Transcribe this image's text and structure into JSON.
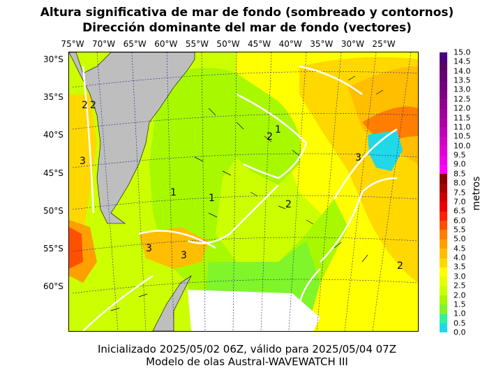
{
  "title_line1": "Altura significativa de mar de fondo (sombreado y contornos)",
  "title_line2": "Dirección dominante del mar de fondo (vectores)",
  "longitude_labels": [
    "75°W",
    "70°W",
    "65°W",
    "60°W",
    "55°W",
    "50°W",
    "45°W",
    "40°W",
    "35°W",
    "30°W",
    "25°W"
  ],
  "latitude_labels": [
    "30°S",
    "35°S",
    "40°S",
    "45°S",
    "50°S",
    "55°S",
    "60°S"
  ],
  "colorbar": {
    "label": "metros",
    "ticks": [
      "15.0",
      "14.5",
      "14.0",
      "13.5",
      "13.0",
      "12.5",
      "12.0",
      "11.5",
      "11.0",
      "10.5",
      "10.0",
      "9.5",
      "9.0",
      "8.5",
      "8.0",
      "7.5",
      "7.0",
      "6.5",
      "6.0",
      "5.5",
      "5.0",
      "4.5",
      "4.0",
      "3.5",
      "3.0",
      "2.5",
      "2.0",
      "1.5",
      "1.0",
      "0.5",
      "0.0"
    ],
    "colors": [
      "#20d8e8",
      "#2ef2a0",
      "#7ff52a",
      "#a8f800",
      "#ccff00",
      "#e6ff00",
      "#ffff00",
      "#ffd800",
      "#ffbe00",
      "#ffa000",
      "#ff7e00",
      "#ff5000",
      "#ff2000",
      "#ee0000",
      "#cc0000",
      "#aa0000",
      "#8b0000",
      "#ff00ff",
      "#f000e8",
      "#e000d4",
      "#d000c4",
      "#c000b4",
      "#b000a8",
      "#a0009c",
      "#900092",
      "#800088",
      "#74007e",
      "#680074",
      "#5c006a",
      "#4b0082"
    ]
  },
  "contour_labels": [
    "1",
    "2",
    "3"
  ],
  "footer_line1": "Inicializado 2025/05/02 06Z, válido para 2025/05/04 07Z",
  "footer_line2": "Modelo de olas Austral-WAVEWATCH III"
}
